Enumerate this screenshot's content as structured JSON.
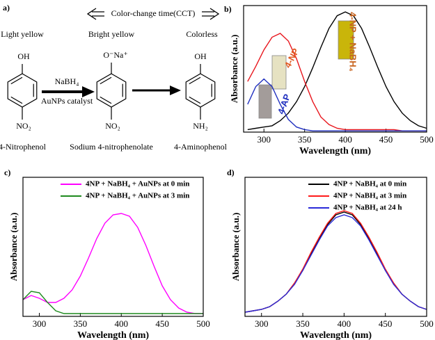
{
  "scheme": {
    "label": "a)",
    "cct": "Color-change time(CCT)",
    "colors": [
      "Light yellow",
      "Bright yellow",
      "Colorless"
    ],
    "groups_top": [
      "OH",
      "O⁻Na⁺",
      "OH"
    ],
    "groups_bottom": [
      "NO₂",
      "NO₂",
      "NH₂"
    ],
    "reagent": "NaBH₄",
    "catalyst": "AuNPs catalyst",
    "compounds": [
      "4-Nitrophenol",
      "Sodium 4-nitrophenolate",
      "4-Aminophenol"
    ]
  },
  "chart_data": [
    {
      "type": "line",
      "label": "b)",
      "x_label": "Wavelength (nm)",
      "y_label": "Absorbance (a.u.)",
      "x": [
        280,
        290,
        300,
        310,
        320,
        330,
        340,
        350,
        360,
        370,
        380,
        390,
        400,
        410,
        420,
        430,
        440,
        450,
        460,
        470,
        480,
        490,
        500
      ],
      "xlim": [
        275,
        500
      ],
      "xticks": [
        300,
        350,
        400,
        450,
        500
      ],
      "ylim": [
        0,
        1
      ],
      "series": [
        {
          "name": "4-NP + NaBH₄",
          "color": "#000000",
          "values": [
            0.02,
            0.03,
            0.04,
            0.05,
            0.09,
            0.15,
            0.24,
            0.36,
            0.51,
            0.67,
            0.82,
            0.92,
            0.95,
            0.92,
            0.82,
            0.67,
            0.51,
            0.36,
            0.24,
            0.15,
            0.09,
            0.05,
            0.03
          ]
        },
        {
          "name": "4-NP",
          "color": "#e8161d",
          "values": [
            0.4,
            0.52,
            0.65,
            0.75,
            0.78,
            0.72,
            0.58,
            0.4,
            0.24,
            0.12,
            0.06,
            0.03,
            0.02,
            0.02,
            0.02,
            0.02,
            0.02,
            0.02,
            0.02,
            0.01,
            0.01,
            0.01,
            0.01
          ]
        },
        {
          "name": "4-AP",
          "color": "#1f2fbf",
          "values": [
            0.22,
            0.36,
            0.42,
            0.36,
            0.22,
            0.1,
            0.04,
            0.02,
            0.01,
            0.01,
            0.01,
            0.01,
            0.01,
            0.01,
            0.01,
            0.01,
            0.01,
            0.01,
            0.01,
            0.01,
            0.01,
            0.01,
            0.01
          ]
        }
      ]
    },
    {
      "type": "line",
      "label": "c)",
      "x_label": "Wavelength (nm)",
      "y_label": "Absorbance (a.u.)",
      "x": [
        280,
        290,
        300,
        310,
        320,
        330,
        340,
        350,
        360,
        370,
        380,
        390,
        400,
        410,
        420,
        430,
        440,
        450,
        460,
        470,
        480,
        490,
        500
      ],
      "xlim": [
        280,
        500
      ],
      "xticks": [
        300,
        350,
        400,
        450,
        500
      ],
      "ylim": [
        0,
        1
      ],
      "legend": "upper right",
      "series": [
        {
          "name": "4NP + NaBH₄ + AuNPs at 0 min",
          "color": "#ff00ff",
          "values": [
            0.12,
            0.15,
            0.13,
            0.1,
            0.1,
            0.13,
            0.19,
            0.29,
            0.42,
            0.56,
            0.67,
            0.73,
            0.74,
            0.72,
            0.64,
            0.51,
            0.36,
            0.22,
            0.12,
            0.06,
            0.03,
            0.02,
            0.02
          ]
        },
        {
          "name": "4NP + NaBH₄ + AuNPs at 3 min",
          "color": "#1e8a1e",
          "values": [
            0.12,
            0.18,
            0.17,
            0.1,
            0.04,
            0.02,
            0.02,
            0.02,
            0.02,
            0.02,
            0.02,
            0.02,
            0.02,
            0.02,
            0.02,
            0.02,
            0.02,
            0.02,
            0.02,
            0.02,
            0.02,
            0.02,
            0.02
          ]
        }
      ]
    },
    {
      "type": "line",
      "label": "d)",
      "x_label": "Wavelength (nm)",
      "y_label": "Absorbance (a.u.)",
      "x": [
        280,
        290,
        300,
        310,
        320,
        330,
        340,
        350,
        360,
        370,
        380,
        390,
        400,
        410,
        420,
        430,
        440,
        450,
        460,
        470,
        480,
        490,
        500
      ],
      "xlim": [
        280,
        500
      ],
      "xticks": [
        300,
        350,
        400,
        450,
        500
      ],
      "ylim": [
        0,
        1
      ],
      "legend": "upper right",
      "series": [
        {
          "name": "4NP + NaBH₄ at 0 min",
          "color": "#000000",
          "values": [
            0.03,
            0.04,
            0.05,
            0.07,
            0.11,
            0.16,
            0.24,
            0.33,
            0.45,
            0.56,
            0.66,
            0.73,
            0.75,
            0.73,
            0.66,
            0.56,
            0.45,
            0.33,
            0.24,
            0.16,
            0.11,
            0.07,
            0.05
          ]
        },
        {
          "name": "4NP + NaBH₄ at 3 min",
          "color": "#ff1a1a",
          "values": [
            0.03,
            0.04,
            0.05,
            0.07,
            0.11,
            0.16,
            0.24,
            0.34,
            0.46,
            0.57,
            0.67,
            0.74,
            0.76,
            0.74,
            0.67,
            0.57,
            0.46,
            0.34,
            0.24,
            0.16,
            0.11,
            0.07,
            0.05
          ]
        },
        {
          "name": "4NP + NaBH₄ at 24 h",
          "color": "#2a2ad8",
          "values": [
            0.03,
            0.04,
            0.05,
            0.07,
            0.11,
            0.16,
            0.23,
            0.33,
            0.44,
            0.55,
            0.65,
            0.71,
            0.73,
            0.71,
            0.65,
            0.55,
            0.44,
            0.33,
            0.23,
            0.16,
            0.11,
            0.07,
            0.05
          ]
        }
      ]
    }
  ]
}
